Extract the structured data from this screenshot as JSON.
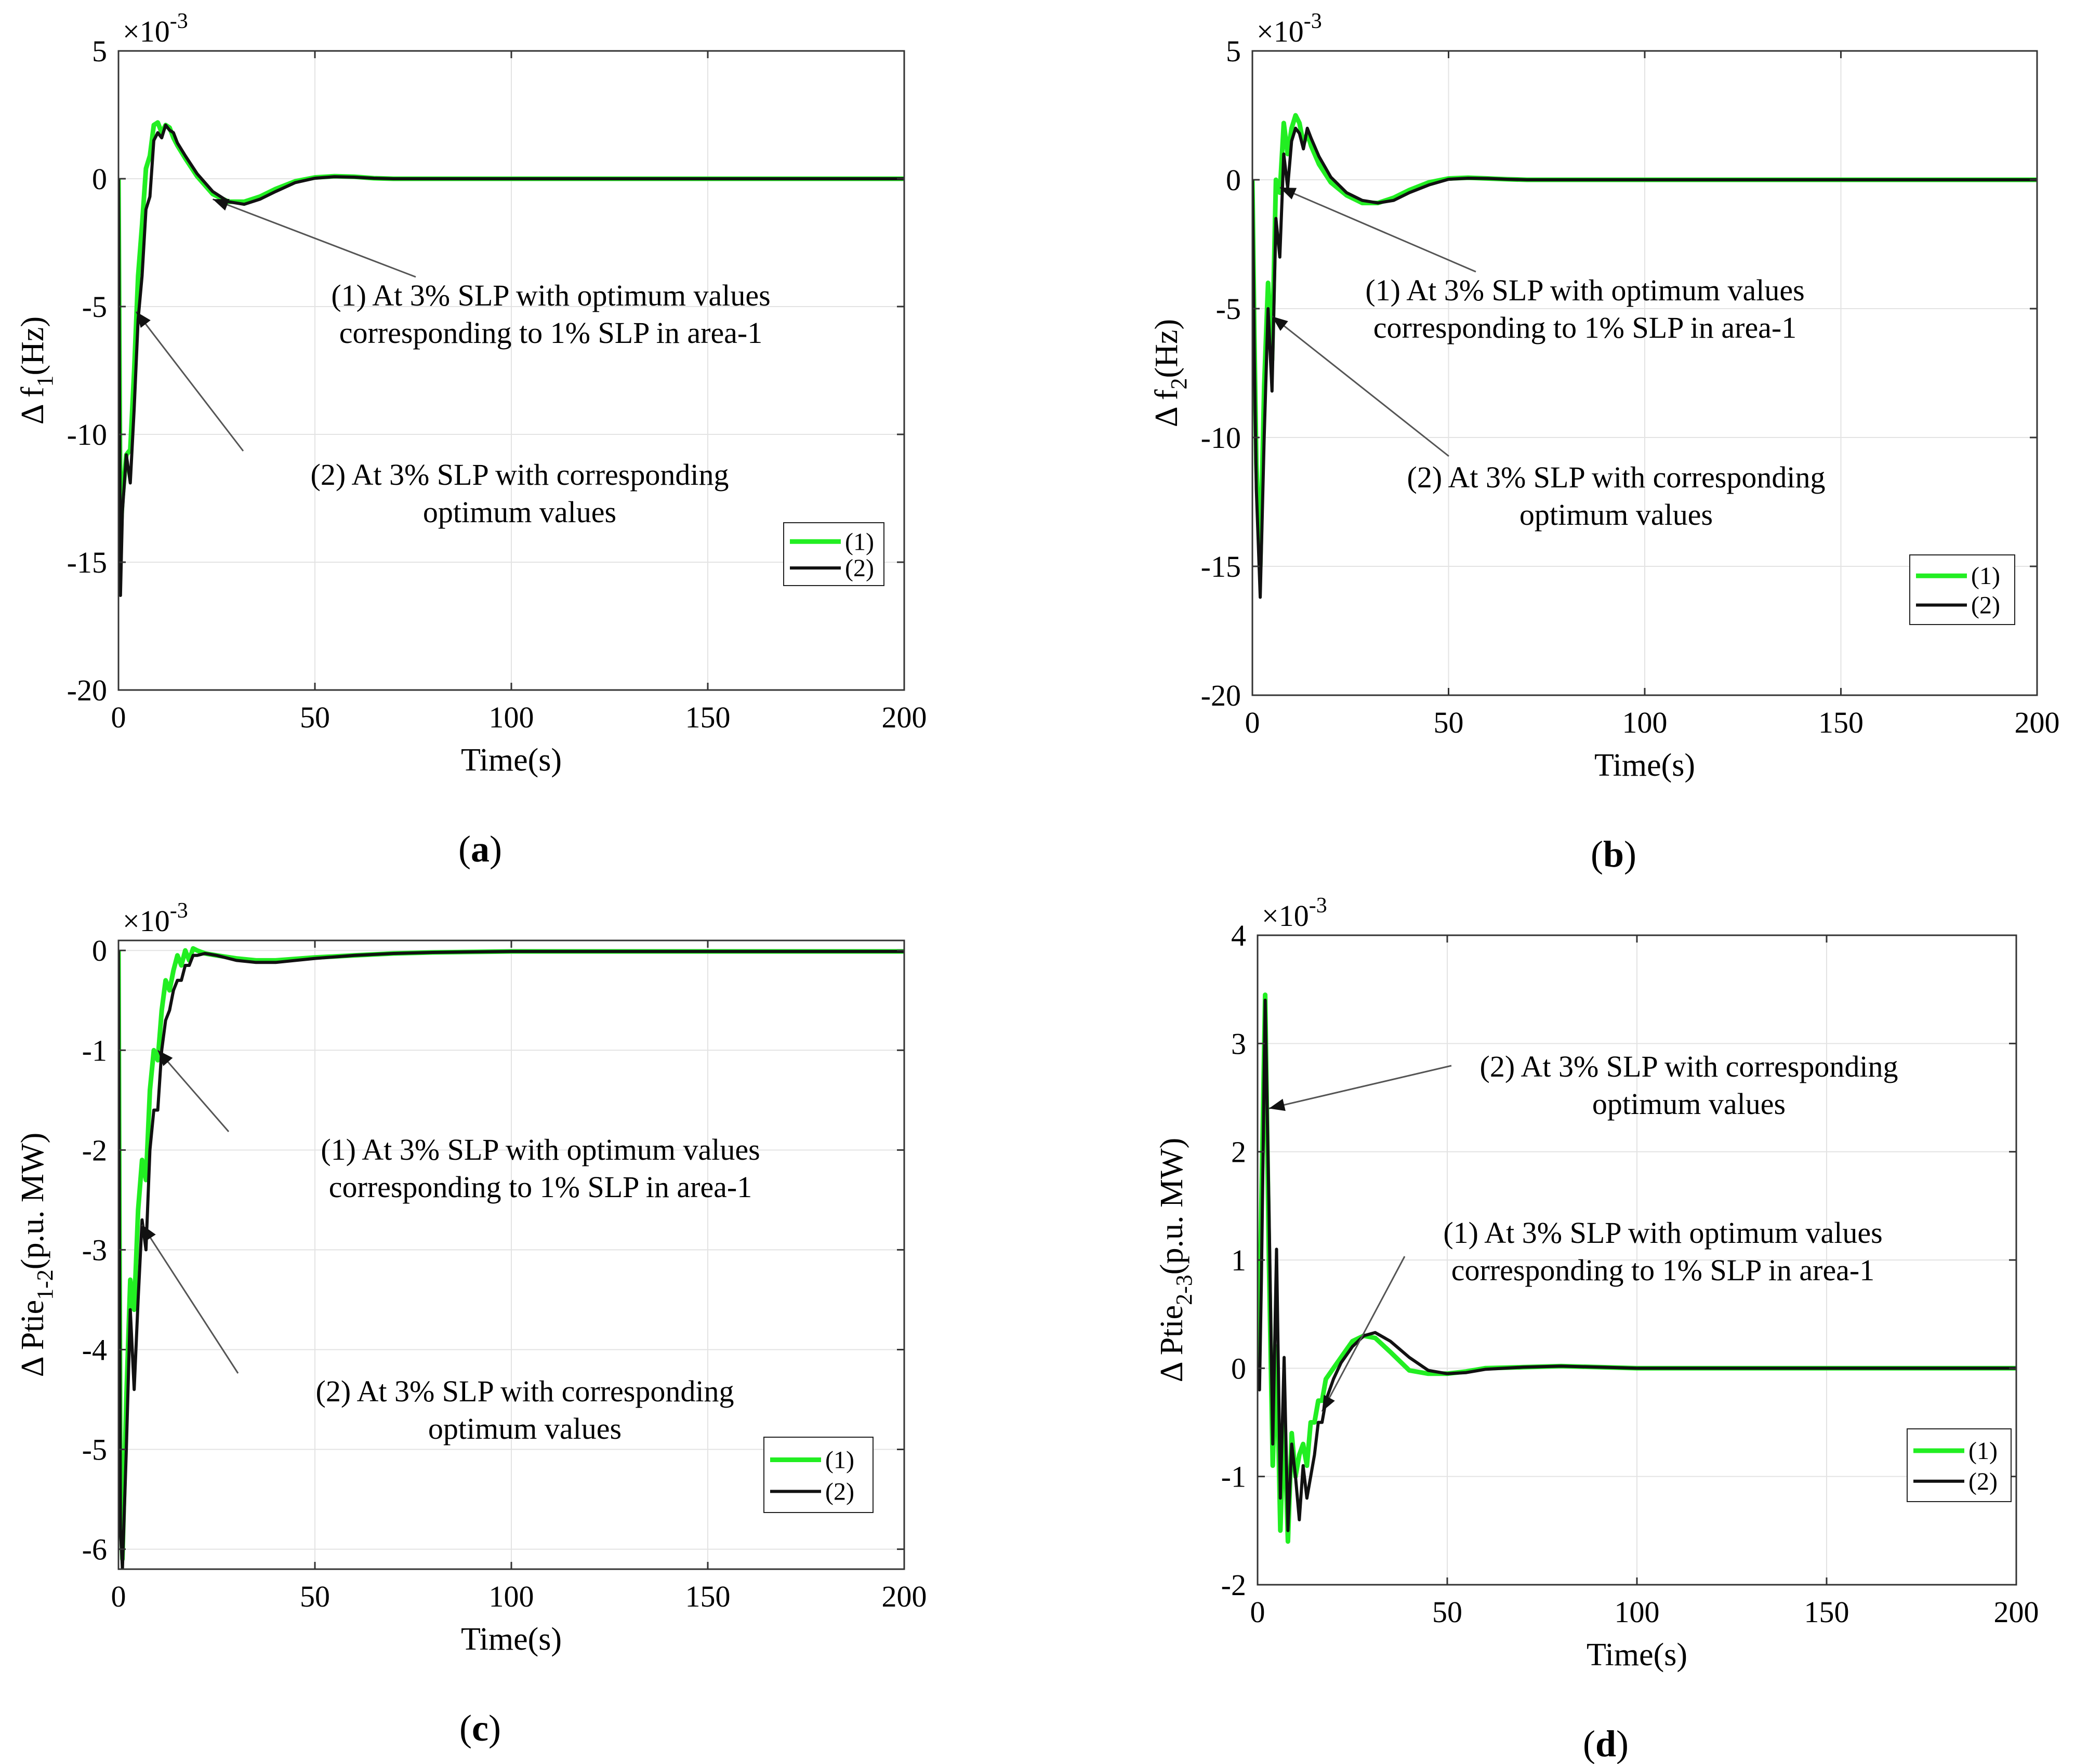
{
  "colors": {
    "series1": "#22ee22",
    "series2": "#111111",
    "grid": "#e3e3e3",
    "axis": "#333333"
  },
  "chart_data": [
    {
      "type": "line",
      "caption": "a",
      "ylabel": "Δ f",
      "ylabel_sub": "1",
      "ylabel_suffix": "(Hz)",
      "xlabel": "Time(s)",
      "exponent_label": "×10",
      "exponent_power": "-3",
      "xlim": [
        0,
        200
      ],
      "ylim": [
        -20,
        5
      ],
      "xticks": [
        0,
        50,
        100,
        150,
        200
      ],
      "yticks": [
        5,
        0,
        -5,
        -10,
        -15,
        -20
      ],
      "grid": true,
      "legend": {
        "position": "right",
        "entries": [
          "(1)",
          "(2)"
        ]
      },
      "annotations": [
        {
          "lines": [
            "(1) At 3% SLP with optimum values",
            "corresponding to 1% SLP in area-1"
          ],
          "target": [
            24,
            -0.8
          ]
        },
        {
          "lines": [
            "(2) At 3% SLP with corresponding",
            "optimum values"
          ],
          "target": [
            4.5,
            -5.2
          ]
        }
      ],
      "series": [
        {
          "name": "(1)",
          "x": [
            0,
            0.5,
            1,
            2,
            3,
            4,
            5,
            6,
            7,
            8,
            9,
            10,
            11,
            12,
            13,
            14,
            15,
            17,
            20,
            24,
            28,
            32,
            36,
            40,
            45,
            50,
            55,
            60,
            65,
            70,
            80,
            100,
            150,
            200
          ],
          "y": [
            0,
            -14,
            -12.5,
            -10.8,
            -10.6,
            -7.5,
            -3.8,
            -1.8,
            0.4,
            0.9,
            2.1,
            2.2,
            1.8,
            2.1,
            2.0,
            1.6,
            1.3,
            0.8,
            0.1,
            -0.6,
            -0.9,
            -0.9,
            -0.7,
            -0.4,
            -0.1,
            0.05,
            0.1,
            0.08,
            0.02,
            0,
            0,
            0,
            0,
            0
          ]
        },
        {
          "name": "(2)",
          "x": [
            0,
            0.5,
            1,
            2,
            3,
            4,
            5,
            6,
            7,
            8,
            9,
            10,
            11,
            12,
            13,
            14,
            15,
            17,
            20,
            24,
            28,
            32,
            36,
            40,
            45,
            50,
            55,
            60,
            65,
            70,
            80,
            100,
            150,
            200
          ],
          "y": [
            0,
            -16.3,
            -13,
            -10.8,
            -11.9,
            -9,
            -5.5,
            -3.8,
            -1.2,
            -0.7,
            1.5,
            1.8,
            1.6,
            2.1,
            1.9,
            1.8,
            1.4,
            0.9,
            0.2,
            -0.5,
            -0.9,
            -1.0,
            -0.8,
            -0.5,
            -0.15,
            0.02,
            0.08,
            0.06,
            0.02,
            0,
            0,
            0,
            0,
            0
          ]
        }
      ]
    },
    {
      "type": "line",
      "caption": "b",
      "ylabel": "Δ f",
      "ylabel_sub": "2",
      "ylabel_suffix": "(Hz)",
      "xlabel": "Time(s)",
      "exponent_label": "×10",
      "exponent_power": "-3",
      "xlim": [
        0,
        200
      ],
      "ylim": [
        -20,
        5
      ],
      "xticks": [
        0,
        50,
        100,
        150,
        200
      ],
      "yticks": [
        5,
        0,
        -5,
        -10,
        -15,
        -20
      ],
      "grid": true,
      "legend": {
        "position": "right",
        "entries": [
          "(1)",
          "(2)"
        ]
      },
      "annotations": [
        {
          "lines": [
            "(1) At 3% SLP with optimum values",
            "corresponding to 1% SLP in area-1"
          ],
          "target": [
            7,
            -0.3
          ]
        },
        {
          "lines": [
            "(2) At 3% SLP with corresponding",
            "optimum values"
          ],
          "target": [
            5,
            -5.3
          ]
        }
      ],
      "series": [
        {
          "name": "(1)",
          "x": [
            0,
            0.5,
            1,
            2,
            3,
            4,
            5,
            6,
            7,
            8,
            9,
            10,
            11,
            12,
            13,
            14,
            15,
            17,
            20,
            24,
            28,
            32,
            36,
            40,
            45,
            50,
            55,
            60,
            65,
            70,
            80,
            100,
            150,
            200
          ],
          "y": [
            0,
            -6,
            -11,
            -15,
            -8,
            -4,
            -7,
            0,
            -0.5,
            2.2,
            1.0,
            2.0,
            2.5,
            2.2,
            1.4,
            1.8,
            1.3,
            0.6,
            -0.1,
            -0.6,
            -0.9,
            -0.9,
            -0.7,
            -0.4,
            -0.1,
            0.05,
            0.08,
            0.05,
            0.02,
            0,
            0,
            0,
            0,
            0
          ]
        },
        {
          "name": "(2)",
          "x": [
            0,
            0.5,
            1,
            2,
            3,
            4,
            5,
            6,
            7,
            8,
            9,
            10,
            11,
            12,
            13,
            14,
            15,
            17,
            20,
            24,
            28,
            32,
            36,
            40,
            45,
            50,
            55,
            60,
            65,
            70,
            80,
            100,
            150,
            200
          ],
          "y": [
            0,
            -7,
            -12,
            -16.2,
            -10,
            -5,
            -8.2,
            -1.5,
            -3,
            1.0,
            -0.3,
            1.5,
            2.0,
            1.8,
            1.2,
            2.0,
            1.6,
            0.9,
            0.1,
            -0.5,
            -0.8,
            -0.9,
            -0.8,
            -0.5,
            -0.2,
            0.02,
            0.06,
            0.05,
            0.02,
            0,
            0,
            0,
            0,
            0
          ]
        }
      ]
    },
    {
      "type": "line",
      "caption": "c",
      "ylabel": "Δ Ptie",
      "ylabel_sub": "1-2",
      "ylabel_suffix": "(p.u. MW)",
      "xlabel": "Time(s)",
      "exponent_label": "×10",
      "exponent_power": "-3",
      "xlim": [
        0,
        200
      ],
      "ylim": [
        -6.2,
        0.1
      ],
      "xticks": [
        0,
        50,
        100,
        150,
        200
      ],
      "yticks": [
        0,
        -1,
        -2,
        -3,
        -4,
        -5,
        -6
      ],
      "grid": true,
      "legend": {
        "position": "right",
        "entries": [
          "(1)",
          "(2)"
        ]
      },
      "annotations": [
        {
          "lines": [
            "(1) At 3% SLP with optimum values",
            "corresponding to 1% SLP in area-1"
          ],
          "target": [
            10,
            -1.0
          ]
        },
        {
          "lines": [
            "(2) At 3% SLP with corresponding",
            "optimum values"
          ],
          "target": [
            6,
            -2.75
          ]
        }
      ],
      "series": [
        {
          "name": "(1)",
          "x": [
            0,
            0.5,
            1,
            2,
            3,
            4,
            5,
            6,
            7,
            8,
            9,
            10,
            11,
            12,
            13,
            14,
            15,
            16,
            17,
            18,
            19,
            20,
            22,
            25,
            30,
            35,
            40,
            50,
            60,
            70,
            80,
            100,
            150,
            200
          ],
          "y": [
            0,
            -5.5,
            -6.1,
            -4.5,
            -3.3,
            -3.6,
            -2.6,
            -2.1,
            -2.3,
            -1.4,
            -1.0,
            -1.1,
            -0.6,
            -0.3,
            -0.4,
            -0.2,
            -0.05,
            -0.15,
            0,
            -0.1,
            0.02,
            0,
            -0.03,
            -0.05,
            -0.08,
            -0.1,
            -0.1,
            -0.07,
            -0.05,
            -0.03,
            -0.02,
            -0.01,
            -0.01,
            -0.01
          ]
        },
        {
          "name": "(2)",
          "x": [
            0,
            0.5,
            1,
            2,
            3,
            4,
            5,
            6,
            7,
            8,
            9,
            10,
            11,
            12,
            13,
            14,
            15,
            16,
            17,
            18,
            19,
            20,
            22,
            25,
            30,
            35,
            40,
            50,
            60,
            70,
            80,
            100,
            150,
            200
          ],
          "y": [
            0,
            -5.8,
            -6.2,
            -5.0,
            -3.6,
            -4.4,
            -3.5,
            -2.7,
            -3.0,
            -2.0,
            -1.6,
            -1.6,
            -1.0,
            -0.7,
            -0.6,
            -0.4,
            -0.3,
            -0.3,
            -0.15,
            -0.15,
            -0.05,
            -0.05,
            -0.03,
            -0.05,
            -0.1,
            -0.12,
            -0.12,
            -0.08,
            -0.05,
            -0.03,
            -0.02,
            -0.01,
            -0.01,
            -0.01
          ]
        }
      ]
    },
    {
      "type": "line",
      "caption": "d",
      "ylabel": "Δ Ptie",
      "ylabel_sub": "2-3",
      "ylabel_suffix": "(p.u. MW)",
      "xlabel": "Time(s)",
      "exponent_label": "×10",
      "exponent_power": "-3",
      "xlim": [
        0,
        200
      ],
      "ylim": [
        -2,
        4
      ],
      "xticks": [
        0,
        50,
        100,
        150,
        200
      ],
      "yticks": [
        4,
        3,
        2,
        1,
        0,
        -1,
        -2
      ],
      "grid": true,
      "legend": {
        "position": "right",
        "entries": [
          "(1)",
          "(2)"
        ]
      },
      "annotations": [
        {
          "lines": [
            "(2) At 3% SLP with corresponding",
            "optimum values"
          ],
          "target": [
            3,
            2.4
          ]
        },
        {
          "lines": [
            "(1) At 3% SLP with optimum values",
            "corresponding to 1% SLP in area-1"
          ],
          "target": [
            17,
            -0.4
          ]
        }
      ],
      "series": [
        {
          "name": "(1)",
          "x": [
            0,
            0.5,
            1,
            2,
            3,
            4,
            5,
            6,
            7,
            8,
            9,
            10,
            11,
            12,
            13,
            14,
            15,
            16,
            17,
            18,
            20,
            22,
            25,
            28,
            31,
            35,
            40,
            45,
            50,
            55,
            60,
            70,
            80,
            100,
            150,
            200
          ],
          "y": [
            0,
            0.5,
            1.5,
            3.45,
            1.0,
            -0.9,
            0.2,
            -1.5,
            -0.4,
            -1.6,
            -0.6,
            -1.0,
            -0.8,
            -0.7,
            -0.9,
            -0.5,
            -0.5,
            -0.3,
            -0.3,
            -0.1,
            0,
            0.1,
            0.25,
            0.3,
            0.28,
            0.15,
            -0.02,
            -0.05,
            -0.05,
            -0.03,
            0,
            0.01,
            0.02,
            0,
            0,
            0
          ]
        },
        {
          "name": "(2)",
          "x": [
            0,
            0.5,
            1,
            2,
            3,
            4,
            5,
            6,
            7,
            8,
            9,
            10,
            11,
            12,
            13,
            14,
            15,
            16,
            17,
            18,
            20,
            22,
            25,
            28,
            31,
            35,
            40,
            45,
            50,
            55,
            60,
            70,
            80,
            100,
            150,
            200
          ],
          "y": [
            0,
            -0.2,
            0.8,
            3.4,
            1.5,
            -0.7,
            1.1,
            -1.2,
            0.1,
            -1.5,
            -0.7,
            -1.0,
            -1.4,
            -0.9,
            -1.2,
            -1.0,
            -0.8,
            -0.5,
            -0.5,
            -0.3,
            -0.1,
            0.05,
            0.2,
            0.3,
            0.33,
            0.25,
            0.1,
            -0.02,
            -0.05,
            -0.04,
            -0.01,
            0.01,
            0.02,
            0,
            0,
            0
          ]
        }
      ]
    }
  ]
}
